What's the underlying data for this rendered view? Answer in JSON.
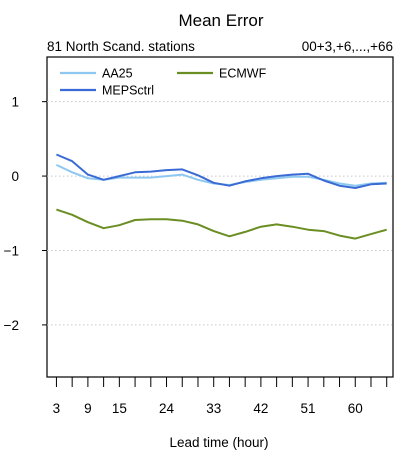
{
  "chart_data": {
    "type": "line",
    "title": "Mean Error",
    "subtitle_left": "81 North Scand. stations",
    "subtitle_right": "00+3,+6,...,+66",
    "xlabel": "Lead time (hour)",
    "ylabel": "",
    "x": [
      3,
      6,
      9,
      12,
      15,
      18,
      21,
      24,
      27,
      30,
      33,
      36,
      39,
      42,
      45,
      48,
      51,
      54,
      57,
      60,
      63,
      66
    ],
    "xtick_labels": [
      "3",
      "9",
      "15",
      "24",
      "33",
      "42",
      "51",
      "60"
    ],
    "xtick_values": [
      3,
      9,
      15,
      24,
      33,
      42,
      51,
      60
    ],
    "ytick_labels": [
      "1",
      "0",
      "−1",
      "−2"
    ],
    "ytick_values": [
      1,
      0,
      -1,
      -2
    ],
    "xlim": [
      1.2,
      67.2
    ],
    "ylim": [
      -2.7,
      1.6
    ],
    "grid": "horizontal dotted",
    "legend_placement": "top-left",
    "series": [
      {
        "name": "AA25",
        "color": "#8ec8f0",
        "values": [
          0.15,
          0.05,
          -0.03,
          -0.05,
          -0.02,
          -0.02,
          -0.02,
          0.0,
          0.02,
          -0.05,
          -0.1,
          -0.12,
          -0.08,
          -0.05,
          -0.03,
          -0.01,
          -0.01,
          -0.05,
          -0.1,
          -0.13,
          -0.1,
          -0.09
        ]
      },
      {
        "name": "MEPSctrl",
        "color": "#3a6bd4",
        "values": [
          0.29,
          0.2,
          0.02,
          -0.05,
          0.0,
          0.05,
          0.06,
          0.08,
          0.09,
          0.01,
          -0.09,
          -0.13,
          -0.07,
          -0.03,
          0.0,
          0.02,
          0.03,
          -0.06,
          -0.13,
          -0.16,
          -0.11,
          -0.1
        ]
      },
      {
        "name": "ECMWF",
        "color": "#6b8e23",
        "values": [
          -0.45,
          -0.52,
          -0.62,
          -0.7,
          -0.66,
          -0.59,
          -0.58,
          -0.58,
          -0.6,
          -0.65,
          -0.74,
          -0.81,
          -0.75,
          -0.68,
          -0.65,
          -0.68,
          -0.72,
          -0.74,
          -0.8,
          -0.84,
          -0.78,
          -0.72
        ]
      }
    ]
  }
}
